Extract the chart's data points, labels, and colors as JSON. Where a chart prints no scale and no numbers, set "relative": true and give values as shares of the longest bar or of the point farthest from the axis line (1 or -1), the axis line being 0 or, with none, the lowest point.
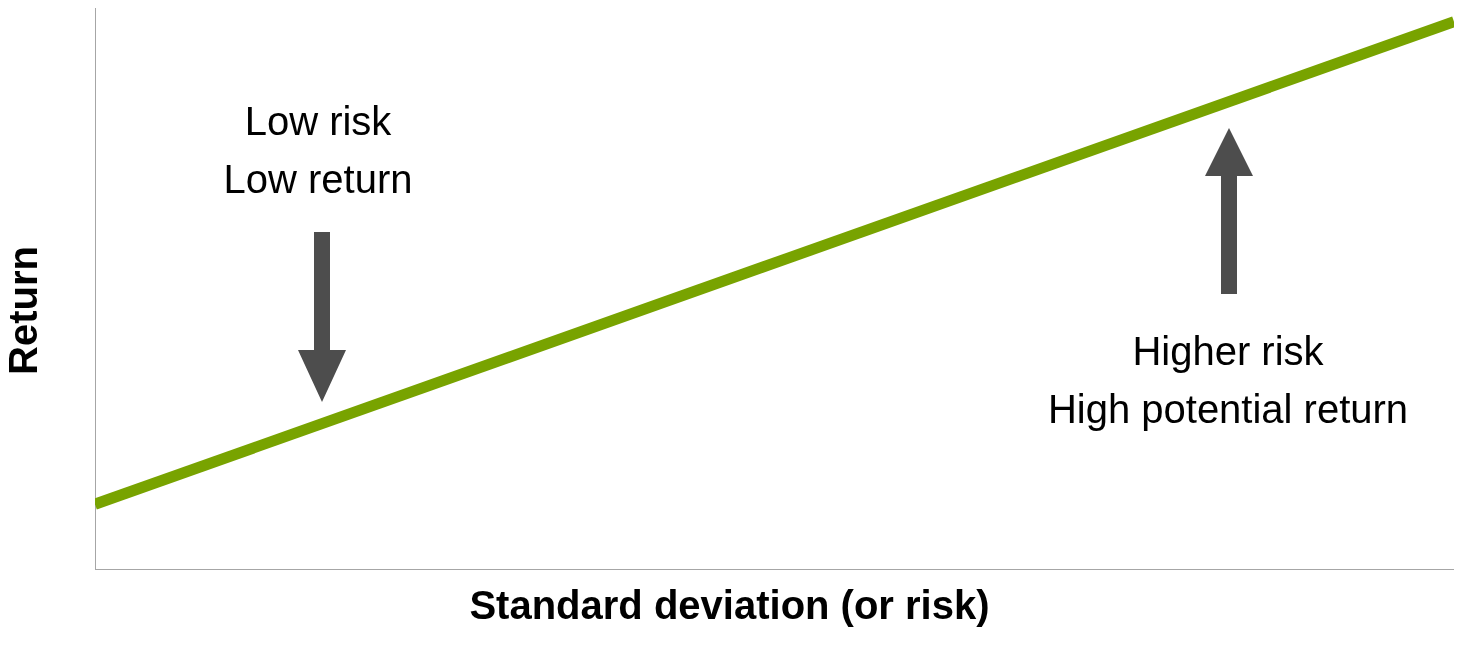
{
  "chart_data": {
    "type": "line",
    "xlabel": "Standard deviation (or risk)",
    "ylabel": "Return",
    "categories": [
      null,
      null
    ],
    "relative": true,
    "marker": "none",
    "legend": false,
    "grid": false,
    "series": [
      {
        "color": "#78a300",
        "values": [
          0.12,
          1
        ]
      }
    ],
    "annotations": [
      "Low risk\nLow return",
      "Higher risk\nHigh potential return"
    ]
  }
}
